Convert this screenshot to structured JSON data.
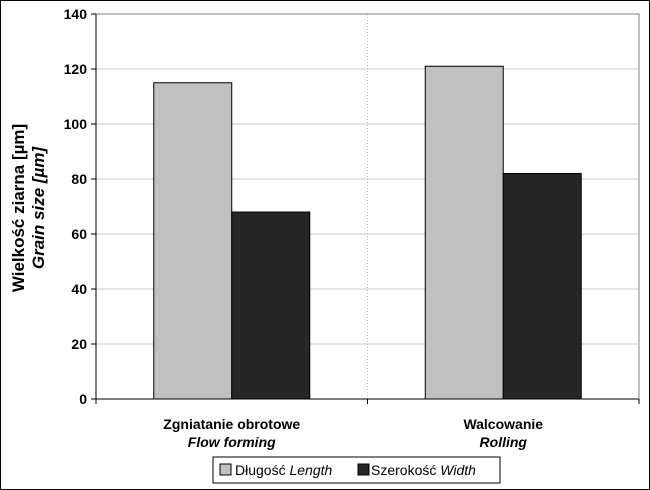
{
  "chart_data": {
    "type": "bar",
    "categories": [
      {
        "primary": "Zgniatanie obrotowe",
        "secondary": "Flow forming"
      },
      {
        "primary": "Walcowanie",
        "secondary": "Rolling"
      }
    ],
    "series": [
      {
        "label": "Długość",
        "label_italic": "Length",
        "color": "#c0c0c0",
        "values": [
          115,
          121
        ]
      },
      {
        "label": "Szerokość",
        "label_italic": "Width",
        "color": "#262626",
        "values": [
          68,
          82
        ]
      }
    ],
    "ylabel": "Wielkość ziarna [µm]",
    "ylabel_italic": "Grain size [µm]",
    "ylim": [
      0,
      140
    ],
    "yticks": [
      0,
      20,
      40,
      60,
      80,
      100,
      120,
      140
    ],
    "grid": true,
    "legend_position": "bottom"
  }
}
